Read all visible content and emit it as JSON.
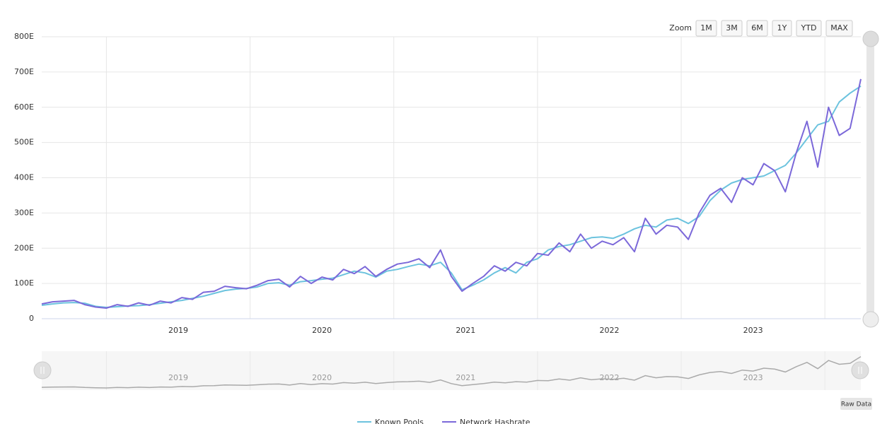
{
  "chart_data": {
    "type": "line",
    "x": [
      2018.05,
      2018.125,
      2018.2,
      2018.275,
      2018.35,
      2018.425,
      2018.5,
      2018.575,
      2018.65,
      2018.725,
      2018.8,
      2018.875,
      2018.95,
      2019.025,
      2019.1,
      2019.175,
      2019.25,
      2019.325,
      2019.4,
      2019.475,
      2019.55,
      2019.625,
      2019.7,
      2019.775,
      2019.85,
      2019.925,
      2020.0,
      2020.075,
      2020.15,
      2020.225,
      2020.3,
      2020.375,
      2020.45,
      2020.525,
      2020.6,
      2020.675,
      2020.75,
      2020.825,
      2020.9,
      2020.975,
      2021.05,
      2021.125,
      2021.2,
      2021.275,
      2021.35,
      2021.425,
      2021.5,
      2021.575,
      2021.65,
      2021.725,
      2021.8,
      2021.875,
      2021.95,
      2022.025,
      2022.1,
      2022.175,
      2022.25,
      2022.325,
      2022.4,
      2022.475,
      2022.55,
      2022.625,
      2022.7,
      2022.775,
      2022.85,
      2022.925,
      2023.0,
      2023.075,
      2023.15,
      2023.225,
      2023.3,
      2023.375,
      2023.45,
      2023.525,
      2023.6,
      2023.675,
      2023.75
    ],
    "series": [
      {
        "name": "Known Pools",
        "color": "#6cc3de",
        "values": [
          38,
          42,
          45,
          46,
          44,
          35,
          32,
          34,
          36,
          37,
          40,
          44,
          48,
          52,
          58,
          64,
          72,
          80,
          84,
          86,
          90,
          100,
          102,
          95,
          105,
          108,
          112,
          115,
          125,
          135,
          130,
          118,
          135,
          140,
          148,
          155,
          150,
          160,
          130,
          82,
          95,
          110,
          130,
          145,
          130,
          160,
          170,
          195,
          205,
          210,
          220,
          230,
          232,
          228,
          240,
          255,
          265,
          260,
          280,
          285,
          270,
          290,
          335,
          365,
          385,
          395,
          400,
          405,
          420,
          435,
          470,
          510,
          550,
          560,
          615,
          640,
          660
        ]
      },
      {
        "name": "Network Hashrate",
        "color": "#7b68d9",
        "values": [
          42,
          48,
          50,
          52,
          40,
          33,
          30,
          40,
          35,
          45,
          38,
          50,
          45,
          60,
          55,
          75,
          78,
          92,
          88,
          85,
          95,
          108,
          112,
          90,
          120,
          100,
          118,
          110,
          140,
          128,
          148,
          120,
          140,
          155,
          160,
          170,
          145,
          195,
          120,
          78,
          100,
          120,
          150,
          135,
          160,
          150,
          185,
          180,
          215,
          190,
          240,
          200,
          220,
          210,
          230,
          190,
          285,
          240,
          265,
          260,
          225,
          300,
          350,
          370,
          330,
          400,
          380,
          440,
          420,
          360,
          470,
          560,
          430,
          600,
          520,
          540,
          680
        ]
      }
    ],
    "xlim": [
      2018.05,
      2023.75
    ],
    "xticks": [
      2019,
      2020,
      2021,
      2022,
      2023
    ],
    "xgrid": [
      2018.5,
      2019.5,
      2020.5,
      2021.5,
      2022.5,
      2023.5
    ],
    "ylim": [
      0,
      800
    ],
    "yticks": [
      0,
      {
        "value": 100,
        "label": "100E"
      },
      {
        "value": 200,
        "label": "200E"
      },
      {
        "value": 300,
        "label": "300E"
      },
      {
        "value": 400,
        "label": "400E"
      },
      {
        "value": 500,
        "label": "500E"
      },
      {
        "value": 600,
        "label": "600E"
      },
      {
        "value": 700,
        "label": "700E"
      },
      {
        "value": 800,
        "label": "800E"
      }
    ],
    "grid": true
  },
  "controls": {
    "zoom_label": "Zoom",
    "zoom_buttons": [
      "1M",
      "3M",
      "6M",
      "1Y",
      "YTD",
      "MAX"
    ],
    "raw_data": "Raw Data"
  }
}
